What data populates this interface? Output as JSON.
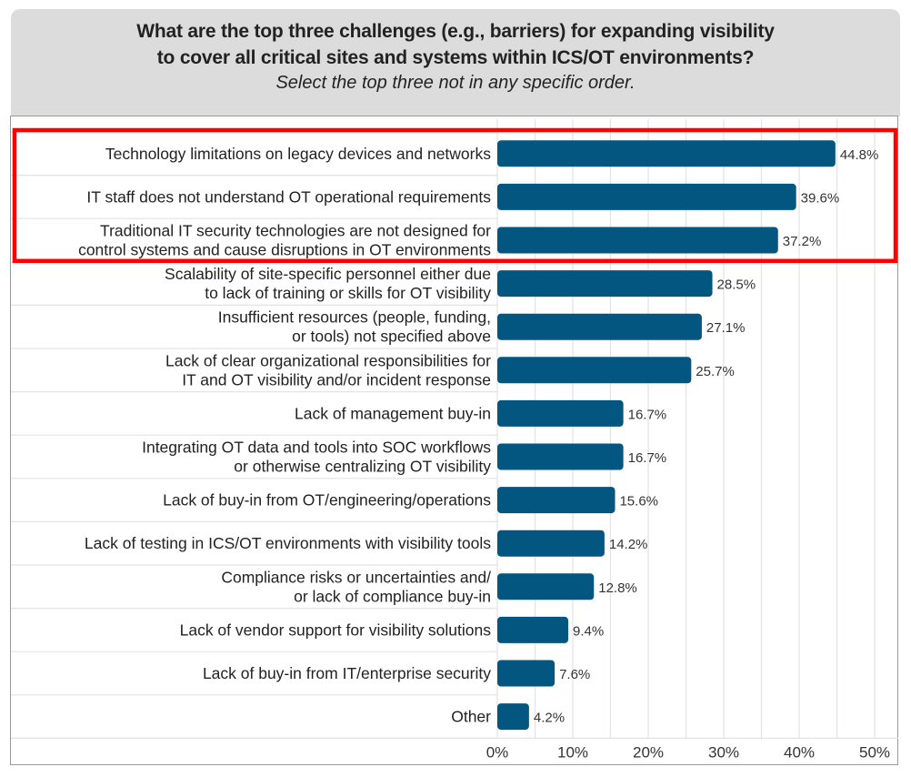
{
  "header": {
    "title_line1": "What are the top three challenges (e.g., barriers) for expanding visibility",
    "title_line2": "to cover all critical sites and systems within ICS/OT environments?",
    "subtitle": "Select the top three not in any specific order."
  },
  "highlight": {
    "color": "#ff0000",
    "covers_categories": [
      0,
      1,
      2
    ]
  },
  "colors": {
    "bar": "#02567f",
    "grid": "#e3e3e3",
    "header_bg": "#dcdcdc"
  },
  "chart_data": {
    "type": "bar",
    "orientation": "horizontal",
    "title": "What are the top three challenges (e.g., barriers) for expanding visibility to cover all critical sites and systems within ICS/OT environments?",
    "subtitle": "Select the top three not in any specific order.",
    "xlabel": "",
    "ylabel": "",
    "xlim": [
      0,
      50
    ],
    "x_ticks": [
      "0%",
      "10%",
      "20%",
      "30%",
      "40%",
      "50%"
    ],
    "grid": "vertical every 5%",
    "categories": [
      [
        "Technology limitations on legacy devices and networks"
      ],
      [
        "IT staff does not understand OT operational requirements"
      ],
      [
        "Traditional IT security technologies are not designed for",
        "control systems and cause disruptions in OT environments"
      ],
      [
        "Scalability of site-specific personnel either due",
        "to lack of training or skills for OT visibility"
      ],
      [
        "Insufficient resources (people, funding,",
        "or tools) not specified above"
      ],
      [
        "Lack of clear organizational responsibilities for",
        "IT and OT visibility and/or incident response"
      ],
      [
        "Lack of management buy-in"
      ],
      [
        "Integrating OT data and tools into SOC workflows",
        "or otherwise centralizing OT visibility"
      ],
      [
        "Lack of buy-in from OT/engineering/operations"
      ],
      [
        "Lack of testing in ICS/OT environments with visibility tools"
      ],
      [
        "Compliance risks or uncertainties and/",
        "or lack of compliance buy-in"
      ],
      [
        "Lack of vendor support for visibility solutions"
      ],
      [
        "Lack of buy-in from IT/enterprise security"
      ],
      [
        "Other"
      ]
    ],
    "values": [
      44.8,
      39.6,
      37.2,
      28.5,
      27.1,
      25.7,
      16.7,
      16.7,
      15.6,
      14.2,
      12.8,
      9.4,
      7.6,
      4.2
    ],
    "value_labels": [
      "44.8%",
      "39.6%",
      "37.2%",
      "28.5%",
      "27.1%",
      "25.7%",
      "16.7%",
      "16.7%",
      "15.6%",
      "14.2%",
      "12.8%",
      "9.4%",
      "7.6%",
      "4.2%"
    ]
  }
}
